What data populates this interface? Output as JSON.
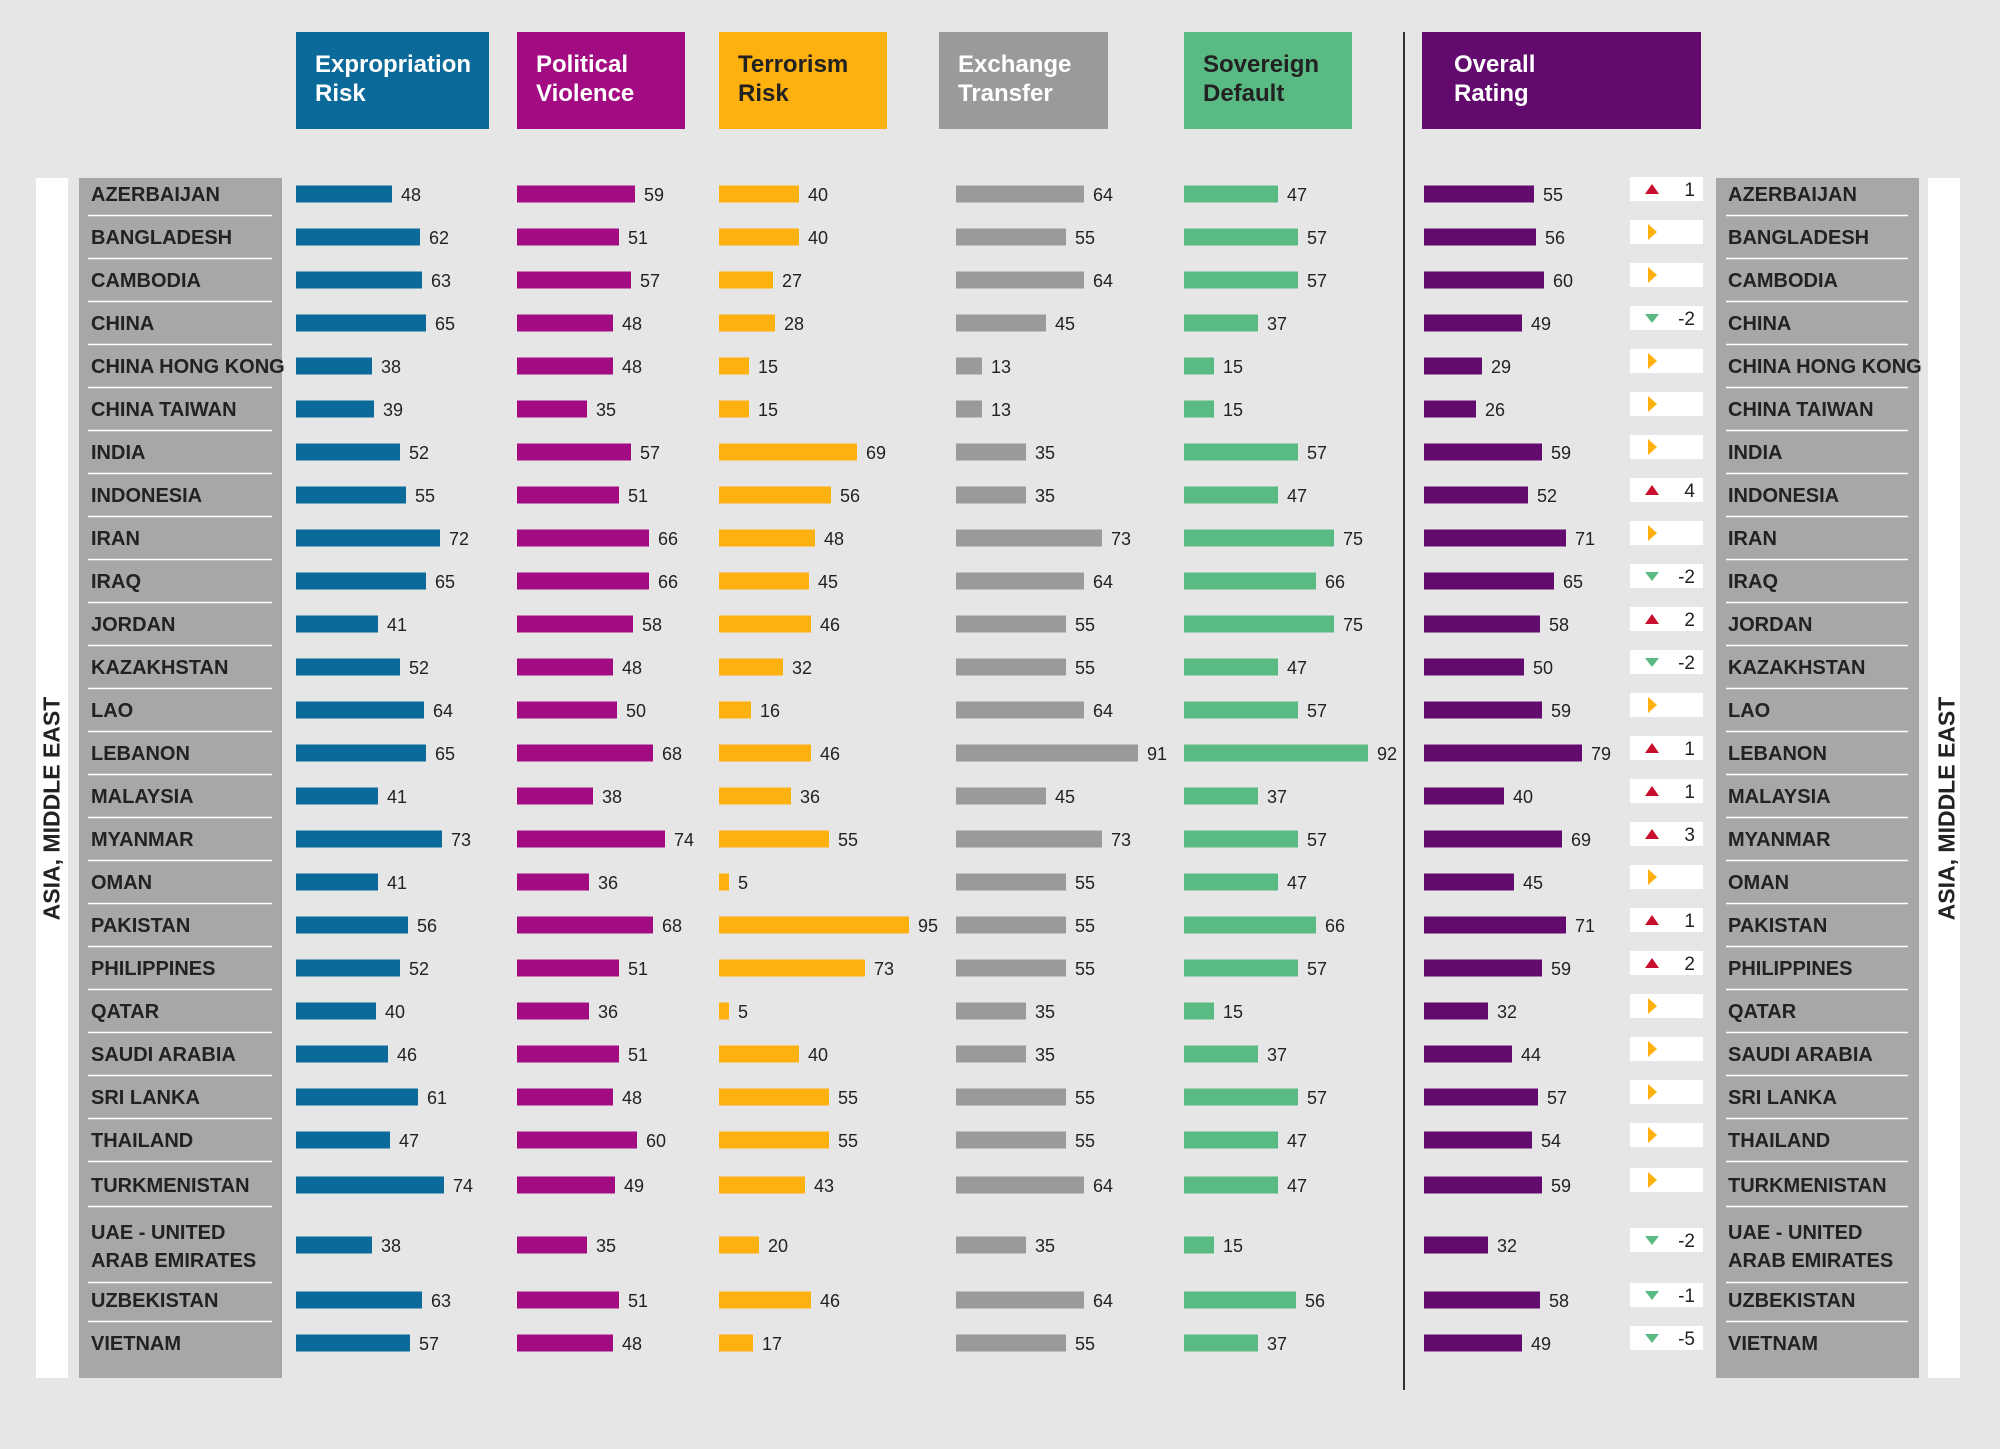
{
  "region_label": "ASIA, MIDDLE EAST",
  "headers": [
    {
      "label": "Expropriation\nRisk",
      "color": "#0b6a99"
    },
    {
      "label": "Political\nViolence",
      "color": "#a30b82"
    },
    {
      "label": "Terrorism\nRisk",
      "color": "#fdb00e"
    },
    {
      "label": "Exchange\nTransfer",
      "color": "#9a9a9a"
    },
    {
      "label": "Sovereign\nDefault",
      "color": "#5aba83"
    },
    {
      "label": "Overall\nRating",
      "color": "#620a6e"
    }
  ],
  "chart_data": {
    "type": "bar",
    "orientation": "horizontal",
    "categories": [
      "AZERBAIJAN",
      "BANGLADESH",
      "CAMBODIA",
      "CHINA",
      "CHINA HONG KONG",
      "CHINA TAIWAN",
      "INDIA",
      "INDONESIA",
      "IRAN",
      "IRAQ",
      "JORDAN",
      "KAZAKHSTAN",
      "LAO",
      "LEBANON",
      "MALAYSIA",
      "MYANMAR",
      "OMAN",
      "PAKISTAN",
      "PHILIPPINES",
      "QATAR",
      "SAUDI ARABIA",
      "SRI LANKA",
      "THAILAND",
      "TURKMENISTAN",
      "UAE - UNITED ARAB EMIRATES",
      "UZBEKISTAN",
      "VIETNAM"
    ],
    "series": [
      {
        "name": "Expropriation Risk",
        "color": "#0b6a99",
        "values": [
          48,
          62,
          63,
          65,
          38,
          39,
          52,
          55,
          72,
          65,
          41,
          52,
          64,
          65,
          41,
          73,
          41,
          56,
          52,
          40,
          46,
          61,
          47,
          74,
          38,
          63,
          57
        ]
      },
      {
        "name": "Political Violence",
        "color": "#a30b82",
        "values": [
          59,
          51,
          57,
          48,
          48,
          35,
          57,
          51,
          66,
          66,
          58,
          48,
          50,
          68,
          38,
          74,
          36,
          68,
          51,
          36,
          51,
          48,
          60,
          49,
          35,
          51,
          48
        ]
      },
      {
        "name": "Terrorism Risk",
        "color": "#fdb00e",
        "values": [
          40,
          40,
          27,
          28,
          15,
          15,
          69,
          56,
          48,
          45,
          46,
          32,
          16,
          46,
          36,
          55,
          5,
          95,
          73,
          5,
          40,
          55,
          55,
          43,
          20,
          46,
          17
        ]
      },
      {
        "name": "Exchange Transfer",
        "color": "#9a9a9a",
        "values": [
          64,
          55,
          64,
          45,
          13,
          13,
          35,
          35,
          73,
          64,
          55,
          55,
          64,
          91,
          45,
          73,
          55,
          55,
          55,
          35,
          35,
          55,
          55,
          64,
          35,
          64,
          55
        ]
      },
      {
        "name": "Sovereign Default",
        "color": "#5aba83",
        "values": [
          47,
          57,
          57,
          37,
          15,
          15,
          57,
          47,
          75,
          66,
          75,
          47,
          57,
          92,
          37,
          57,
          47,
          66,
          57,
          15,
          37,
          57,
          47,
          47,
          15,
          56,
          37
        ]
      },
      {
        "name": "Overall Rating",
        "color": "#620a6e",
        "values": [
          55,
          56,
          60,
          49,
          29,
          26,
          59,
          52,
          71,
          65,
          58,
          50,
          59,
          79,
          40,
          69,
          45,
          71,
          59,
          32,
          44,
          57,
          54,
          59,
          32,
          58,
          49
        ]
      }
    ],
    "rating_change": {
      "values": [
        1,
        0,
        0,
        -2,
        0,
        0,
        0,
        4,
        0,
        -2,
        2,
        -2,
        0,
        1,
        1,
        3,
        0,
        1,
        2,
        0,
        0,
        0,
        0,
        0,
        -2,
        -1,
        -5
      ],
      "labels": [
        "1",
        "",
        "",
        "-2",
        "",
        "",
        "",
        "4",
        "",
        "-2",
        "2",
        "-2",
        "",
        "1",
        "1",
        "3",
        "",
        "1",
        "2",
        "",
        "",
        "",
        "",
        "",
        "-2",
        "-1",
        "-5"
      ],
      "colors": {
        "up": "#c8102e",
        "down": "#5aba83",
        "same": "#fdb00e"
      }
    }
  }
}
